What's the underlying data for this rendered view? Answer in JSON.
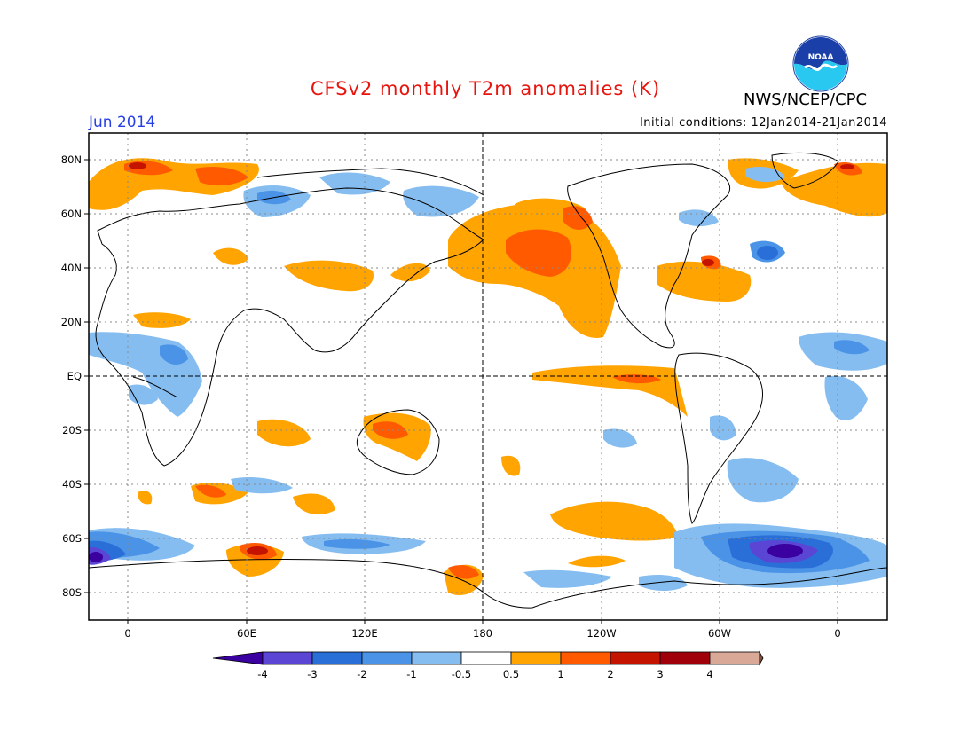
{
  "header": {
    "title": "CFSv2 monthly T2m anomalies (K)",
    "month": "Jun 2014",
    "agency": "NWS/NCEP/CPC",
    "initial_conditions": "Initial conditions: 12Jan2014-21Jan2014",
    "logo_text": "NOAA"
  },
  "map": {
    "projection": "cylindrical equidistant",
    "lat_labels": [
      "80N",
      "60N",
      "40N",
      "20N",
      "EQ",
      "20S",
      "40S",
      "60S",
      "80S"
    ],
    "lat_values": [
      80,
      60,
      40,
      20,
      0,
      -20,
      -40,
      -60,
      -80
    ],
    "lon_labels": [
      "0",
      "60E",
      "120E",
      "180",
      "120W",
      "60W",
      "0"
    ],
    "lon_values": [
      0,
      60,
      120,
      180,
      240,
      300,
      360
    ],
    "lon_range": [
      -20,
      380
    ],
    "lat_range": [
      -90,
      90
    ],
    "grid": "dotted",
    "reference_lines": [
      "equator",
      "date line (180)"
    ],
    "land_outline_color": "#000000"
  },
  "colorbar": {
    "levels": [
      "-4",
      "-3",
      "-2",
      "-1",
      "-0.5",
      "0.5",
      "1",
      "2",
      "3",
      "4"
    ],
    "colors": [
      "#3a00a0",
      "#5a45d4",
      "#2a6fd8",
      "#4a93e6",
      "#86bdf0",
      "#ffffff",
      "#ffa400",
      "#ff5a00",
      "#c41400",
      "#a0000a",
      "#d9a896",
      "#7a4f3c"
    ],
    "extends": "both"
  },
  "colors": {
    "title": "#e8150f",
    "month": "#2640e6",
    "noaa_blue": "#1a3fa8",
    "noaa_cyan": "#28c8f0"
  }
}
